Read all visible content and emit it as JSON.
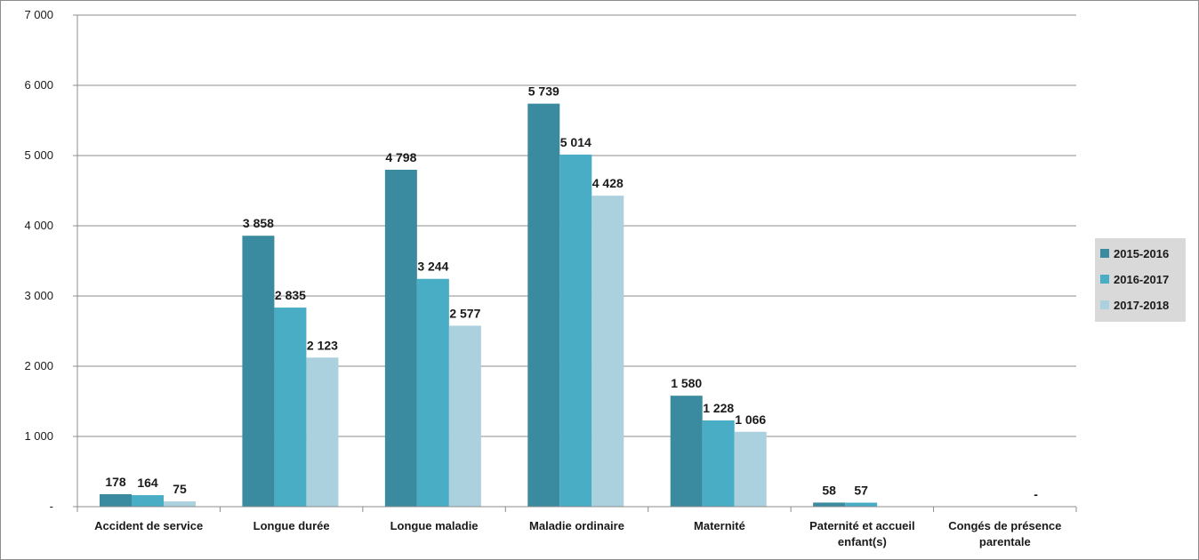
{
  "chart_data": {
    "type": "bar",
    "categories": [
      [
        "Accident de service"
      ],
      [
        "Longue durée"
      ],
      [
        "Longue maladie"
      ],
      [
        "Maladie ordinaire"
      ],
      [
        "Maternité"
      ],
      [
        "Paternité et accueil",
        "enfant(s)"
      ],
      [
        "Congés de présence",
        "parentale"
      ]
    ],
    "series": [
      {
        "name": "2015-2016",
        "color": "#3a8aa0",
        "values": [
          178,
          3858,
          4798,
          5739,
          1580,
          58,
          null
        ],
        "labels": [
          "178",
          "3 858",
          "4 798",
          "5 739",
          "1 580",
          "58",
          null
        ]
      },
      {
        "name": "2016-2017",
        "color": "#4aadc6",
        "values": [
          164,
          2835,
          3244,
          5014,
          1228,
          57,
          null
        ],
        "labels": [
          "164",
          "2 835",
          "3 244",
          "5 014",
          "1 228",
          "57",
          null
        ]
      },
      {
        "name": "2017-2018",
        "color": "#abd0de",
        "values": [
          75,
          2123,
          2577,
          4428,
          1066,
          null,
          0
        ],
        "labels": [
          "75",
          "2 123",
          "2 577",
          "4 428",
          "1 066",
          null,
          "-"
        ]
      }
    ],
    "ylim": [
      0,
      7000
    ],
    "yticks": [
      0,
      1000,
      2000,
      3000,
      4000,
      5000,
      6000,
      7000
    ],
    "ytick_labels": [
      "-",
      "1 000",
      "2 000",
      "3 000",
      "4 000",
      "5 000",
      "6 000",
      "7 000"
    ],
    "grid": true,
    "legend_position": "right"
  }
}
